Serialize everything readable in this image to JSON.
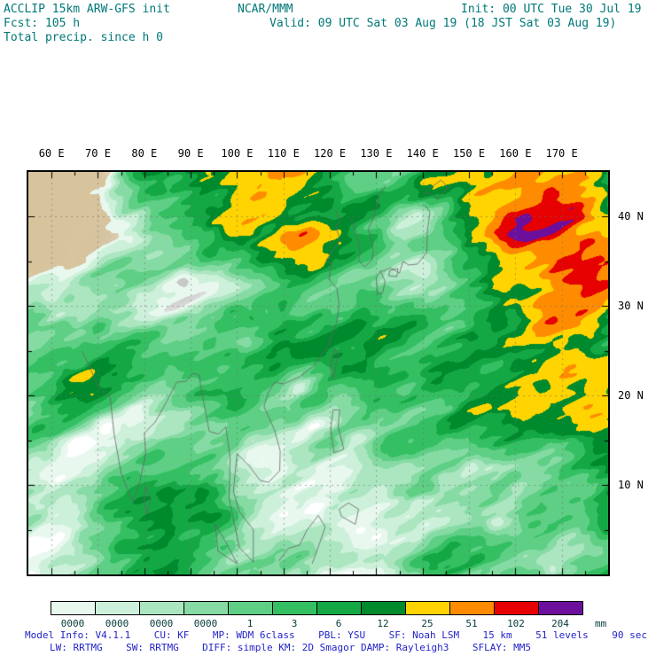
{
  "header": {
    "left": {
      "line1": "ACCLIP 15km ARW-GFS init",
      "line2": "Fcst: 105 h",
      "line3": "Total precip. since h 0"
    },
    "center": {
      "org": "NCAR/MMM",
      "valid": "Valid: 09 UTC Sat 03 Aug 19 (18 JST Sat 03 Aug 19)"
    },
    "right": {
      "init": "Init: 00 UTC Tue 30 Jul 19"
    }
  },
  "map": {
    "extent": {
      "lon_min": 55,
      "lon_max": 180,
      "lat_min": 0,
      "lat_max": 45
    },
    "lon_ticks": [
      {
        "value": 60,
        "label": "60 E"
      },
      {
        "value": 70,
        "label": "70 E"
      },
      {
        "value": 80,
        "label": "80 E"
      },
      {
        "value": 90,
        "label": "90 E"
      },
      {
        "value": 100,
        "label": "100 E"
      },
      {
        "value": 110,
        "label": "110 E"
      },
      {
        "value": 120,
        "label": "120 E"
      },
      {
        "value": 130,
        "label": "130 E"
      },
      {
        "value": 140,
        "label": "140 E"
      },
      {
        "value": 150,
        "label": "150 E"
      },
      {
        "value": 160,
        "label": "160 E"
      },
      {
        "value": 170,
        "label": "170 E"
      }
    ],
    "lat_ticks": [
      {
        "value": 40,
        "label": "40 N"
      },
      {
        "value": 30,
        "label": "30 N"
      },
      {
        "value": 20,
        "label": "20 N"
      },
      {
        "value": 10,
        "label": "10 N"
      }
    ]
  },
  "colorbar": {
    "colors": [
      "#e8f8ee",
      "#cdf0da",
      "#abe6c0",
      "#86dba4",
      "#5ecf85",
      "#35bf63",
      "#14a845",
      "#008a2e",
      "#ffd400",
      "#ff8c00",
      "#e60000",
      "#6b0f9c"
    ],
    "labels": [
      "0000",
      "0000",
      "0000",
      "0000",
      "1",
      "3",
      "6",
      "12",
      "25",
      "51",
      "102",
      "204"
    ],
    "unit": "mm"
  },
  "footer": {
    "line1": "Model Info: V4.1.1    CU: KF    MP: WDM 6class    PBL: YSU    SF: Noah LSM    15 km    51 levels    90 sec",
    "line2": "LW: RRTMG    SW: RRTMG    DIFF: simple KM: 2D Smagor DAMP: Rayleigh3    SFLAY: MM5"
  },
  "theme": {
    "header_color": "#007878",
    "footer_color": "#2323c8",
    "land_tan": "#d8c49c",
    "mountain_gray": "#c8c8c8",
    "coast_gray": "#7d7d7d"
  }
}
